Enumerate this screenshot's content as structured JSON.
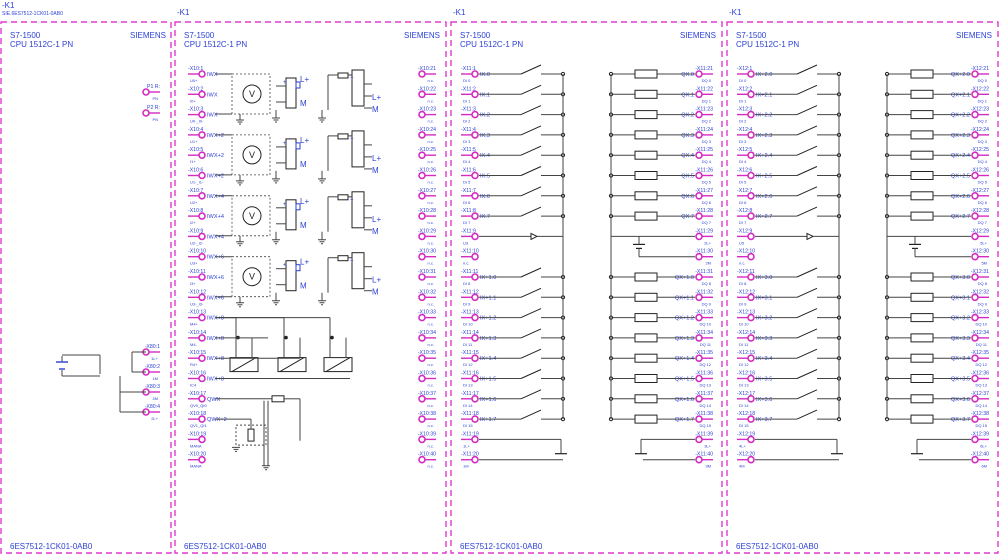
{
  "top": {
    "tag": "-K1",
    "article": "SIE.6ES7512-1CK01-0AB0"
  },
  "modules": [
    {
      "tag": "",
      "family": "S7-1500",
      "cpu": "CPU 1512C-1 PN",
      "brand": "SIEMENS",
      "order_no": "6ES7512-1CK01-0AB0",
      "terminals": [
        {
          "id": "P1 R:",
          "sig": "",
          "sub": "PN"
        },
        {
          "id": "P2 R:",
          "sig": "",
          "sub": "PN"
        },
        {
          "id": "-X80:1",
          "sig": "",
          "sub": "1L+"
        },
        {
          "id": "-X80:2",
          "sig": "",
          "sub": "1M"
        },
        {
          "id": "-X80:3",
          "sig": "",
          "sub": "2M"
        },
        {
          "id": "-X80:4",
          "sig": "",
          "sub": "2L+"
        }
      ]
    },
    {
      "tag": "-K1",
      "family": "S7-1500",
      "cpu": "CPU 1512C-1 PN",
      "brand": "SIEMENS",
      "order_no": "6ES7512-1CK01-0AB0",
      "left_terminals": [
        {
          "id": "-X10:1",
          "sig": "IWX",
          "sub": "U0+"
        },
        {
          "id": "-X10:2",
          "sig": "IWX",
          "sub": "I0+"
        },
        {
          "id": "-X10:3",
          "sig": "IWX",
          "sub": "U0-_I0-"
        },
        {
          "id": "-X10:4",
          "sig": "IWX+2",
          "sub": "U1+"
        },
        {
          "id": "-X10:5",
          "sig": "IWX+2",
          "sub": "I1+"
        },
        {
          "id": "-X10:6",
          "sig": "IWX+2",
          "sub": "U1-_I1-"
        },
        {
          "id": "-X10:7",
          "sig": "IWX+4",
          "sub": "U2+"
        },
        {
          "id": "-X10:8",
          "sig": "IWX+4",
          "sub": "I2+"
        },
        {
          "id": "-X10:9",
          "sig": "IWX+4",
          "sub": "U2-_I2-"
        },
        {
          "id": "-X10:10",
          "sig": "IWX+6",
          "sub": "U3+"
        },
        {
          "id": "-X10:11",
          "sig": "IWX+6",
          "sub": "I3+"
        },
        {
          "id": "-X10:12",
          "sig": "IWX+6",
          "sub": "U3-_I3-"
        },
        {
          "id": "-X10:13",
          "sig": "IWX+8",
          "sub": "M4+"
        },
        {
          "id": "-X10:14",
          "sig": "IWX+8",
          "sub": "M4-"
        },
        {
          "id": "-X10:15",
          "sig": "IWX+8",
          "sub": "R4+"
        },
        {
          "id": "-X10:16",
          "sig": "IWX+8",
          "sub": "IC4"
        },
        {
          "id": "-X10:17",
          "sig": "QWX",
          "sub": "QV0_QI0"
        },
        {
          "id": "-X10:18",
          "sig": "QWX+2",
          "sub": "QV1_QI1"
        },
        {
          "id": "-X10:19",
          "sig": "",
          "sub": "MANA"
        },
        {
          "id": "-X10:20",
          "sig": "",
          "sub": "MANA"
        }
      ],
      "right_terminals": [
        {
          "id": "-X10:21",
          "sub": "n.c."
        },
        {
          "id": "-X10:22",
          "sub": "n.c."
        },
        {
          "id": "-X10:23",
          "sub": "n.c."
        },
        {
          "id": "-X10:24",
          "sub": "n.c."
        },
        {
          "id": "-X10:25",
          "sub": "n.c."
        },
        {
          "id": "-X10:26",
          "sub": "n.c."
        },
        {
          "id": "-X10:27",
          "sub": "n.c."
        },
        {
          "id": "-X10:28",
          "sub": "n.c."
        },
        {
          "id": "-X10:29",
          "sub": "n.c."
        },
        {
          "id": "-X10:30",
          "sub": "n.c."
        },
        {
          "id": "-X10:31",
          "sub": "n.c."
        },
        {
          "id": "-X10:32",
          "sub": "n.c."
        },
        {
          "id": "-X10:33",
          "sub": "n.c."
        },
        {
          "id": "-X10:34",
          "sub": "n.c."
        },
        {
          "id": "-X10:35",
          "sub": "n.c."
        },
        {
          "id": "-X10:36",
          "sub": "n.c."
        },
        {
          "id": "-X10:37",
          "sub": "n.c."
        },
        {
          "id": "-X10:38",
          "sub": "n.c."
        },
        {
          "id": "-X10:39",
          "sub": "n.c."
        },
        {
          "id": "-X10:40",
          "sub": "n.c."
        }
      ],
      "supply_labels": [
        "L+",
        "M"
      ]
    },
    {
      "tag": "-K1",
      "family": "S7-1500",
      "cpu": "CPU 1512C-1 PN",
      "brand": "SIEMENS",
      "order_no": "6ES7512-1CK01-0AB0",
      "left_terminals": [
        {
          "id": "-X11:1",
          "sig": "IX.0",
          "sub": "DI 0"
        },
        {
          "id": "-X11:2",
          "sig": "IX.1",
          "sub": "DI 1"
        },
        {
          "id": "-X11:3",
          "sig": "IX.2",
          "sub": "DI 2"
        },
        {
          "id": "-X11:4",
          "sig": "IX.3",
          "sub": "DI 3"
        },
        {
          "id": "-X11:5",
          "sig": "IX.4",
          "sub": "DI 4"
        },
        {
          "id": "-X11:6",
          "sig": "IX.5",
          "sub": "DI 5"
        },
        {
          "id": "-X11:7",
          "sig": "IX.6",
          "sub": "DI 6"
        },
        {
          "id": "-X11:8",
          "sig": "IX.7",
          "sub": "DI 7"
        },
        {
          "id": "-X11:9",
          "sig": "",
          "sub": "U3"
        },
        {
          "id": "-X11:10",
          "sig": "",
          "sub": "n.c."
        },
        {
          "id": "-X11:11",
          "sig": "IX+1.0",
          "sub": "DI 8"
        },
        {
          "id": "-X11:12",
          "sig": "IX+1.1",
          "sub": "DI 9"
        },
        {
          "id": "-X11:13",
          "sig": "IX+1.2",
          "sub": "DI 10"
        },
        {
          "id": "-X11:14",
          "sig": "IX+1.3",
          "sub": "DI 11"
        },
        {
          "id": "-X11:15",
          "sig": "IX+1.4",
          "sub": "DI 12"
        },
        {
          "id": "-X11:16",
          "sig": "IX+1.5",
          "sub": "DI 13"
        },
        {
          "id": "-X11:17",
          "sig": "IX+1.6",
          "sub": "DI 14"
        },
        {
          "id": "-X11:18",
          "sig": "IX+1.7",
          "sub": "DI 15"
        },
        {
          "id": "-X11:19",
          "sig": "",
          "sub": "1L+"
        },
        {
          "id": "-X11:20",
          "sig": "",
          "sub": "1M"
        }
      ],
      "right_terminals": [
        {
          "id": "-X11:21",
          "sig": "QX.0",
          "sub": "DQ 0"
        },
        {
          "id": "-X11:22",
          "sig": "QX.1",
          "sub": "DQ 1"
        },
        {
          "id": "-X11:23",
          "sig": "QX.2",
          "sub": "DQ 2"
        },
        {
          "id": "-X11:24",
          "sig": "QX.3",
          "sub": "DQ 3"
        },
        {
          "id": "-X11:25",
          "sig": "QX.4",
          "sub": "DQ 4"
        },
        {
          "id": "-X11:26",
          "sig": "QX.5",
          "sub": "DQ 5"
        },
        {
          "id": "-X11:27",
          "sig": "QX.6",
          "sub": "DQ 6"
        },
        {
          "id": "-X11:28",
          "sig": "QX.7",
          "sub": "DQ 7"
        },
        {
          "id": "-X11:29",
          "sig": "",
          "sub": "2L+"
        },
        {
          "id": "-X11:30",
          "sig": "",
          "sub": "2M"
        },
        {
          "id": "-X11:31",
          "sig": "QX+1.0",
          "sub": "DQ 8"
        },
        {
          "id": "-X11:32",
          "sig": "QX+1.1",
          "sub": "DQ 9"
        },
        {
          "id": "-X11:33",
          "sig": "QX+1.2",
          "sub": "DQ 10"
        },
        {
          "id": "-X11:34",
          "sig": "QX+1.3",
          "sub": "DQ 11"
        },
        {
          "id": "-X11:35",
          "sig": "QX+1.4",
          "sub": "DQ 12"
        },
        {
          "id": "-X11:36",
          "sig": "QX+1.5",
          "sub": "DQ 13"
        },
        {
          "id": "-X11:37",
          "sig": "QX+1.6",
          "sub": "DQ 14"
        },
        {
          "id": "-X11:38",
          "sig": "QX+1.7",
          "sub": "DQ 15"
        },
        {
          "id": "-X11:39",
          "sig": "",
          "sub": "3L+"
        },
        {
          "id": "-X11:40",
          "sig": "",
          "sub": "3M"
        }
      ]
    },
    {
      "tag": "-K1",
      "family": "S7-1500",
      "cpu": "CPU 1512C-1 PN",
      "brand": "SIEMENS",
      "order_no": "6ES7512-1CK01-0AB0",
      "left_terminals": [
        {
          "id": "-X12:1",
          "sig": "IX+2.0",
          "sub": "DI 0"
        },
        {
          "id": "-X12:2",
          "sig": "IX+2.1",
          "sub": "DI 1"
        },
        {
          "id": "-X12:3",
          "sig": "IX+2.2",
          "sub": "DI 2"
        },
        {
          "id": "-X12:4",
          "sig": "IX+2.3",
          "sub": "DI 3"
        },
        {
          "id": "-X12:5",
          "sig": "IX+2.4",
          "sub": "DI 4"
        },
        {
          "id": "-X12:6",
          "sig": "IX+2.5",
          "sub": "DI 5"
        },
        {
          "id": "-X12:7",
          "sig": "IX+2.6",
          "sub": "DI 6"
        },
        {
          "id": "-X12:8",
          "sig": "IX+2.7",
          "sub": "DI 7"
        },
        {
          "id": "-X12:9",
          "sig": "",
          "sub": "U5"
        },
        {
          "id": "-X12:10",
          "sig": "",
          "sub": "n.c."
        },
        {
          "id": "-X12:11",
          "sig": "IX+3.0",
          "sub": "DI 8"
        },
        {
          "id": "-X12:12",
          "sig": "IX+3.1",
          "sub": "DI 9"
        },
        {
          "id": "-X12:13",
          "sig": "IX+3.2",
          "sub": "DI 10"
        },
        {
          "id": "-X12:14",
          "sig": "IX+3.3",
          "sub": "DI 11"
        },
        {
          "id": "-X12:15",
          "sig": "IX+3.4",
          "sub": "DI 12"
        },
        {
          "id": "-X12:16",
          "sig": "IX+3.5",
          "sub": "DI 13"
        },
        {
          "id": "-X12:17",
          "sig": "IX+3.6",
          "sub": "DI 14"
        },
        {
          "id": "-X12:18",
          "sig": "IX+3.7",
          "sub": "DI 15"
        },
        {
          "id": "-X12:19",
          "sig": "",
          "sub": "4L+"
        },
        {
          "id": "-X12:20",
          "sig": "",
          "sub": "4M"
        }
      ],
      "right_terminals": [
        {
          "id": "-X12:21",
          "sig": "QX+2.0",
          "sub": "DQ 0"
        },
        {
          "id": "-X12:22",
          "sig": "QX+2.1",
          "sub": "DQ 1"
        },
        {
          "id": "-X12:23",
          "sig": "QX+2.2",
          "sub": "DQ 2"
        },
        {
          "id": "-X12:24",
          "sig": "QX+2.3",
          "sub": "DQ 3"
        },
        {
          "id": "-X12:25",
          "sig": "QX+2.4",
          "sub": "DQ 4"
        },
        {
          "id": "-X12:26",
          "sig": "QX+2.5",
          "sub": "DQ 5"
        },
        {
          "id": "-X12:27",
          "sig": "QX+2.6",
          "sub": "DQ 6"
        },
        {
          "id": "-X12:28",
          "sig": "QX+2.7",
          "sub": "DQ 7"
        },
        {
          "id": "-X12:29",
          "sig": "",
          "sub": "5L+"
        },
        {
          "id": "-X12:30",
          "sig": "",
          "sub": "5M"
        },
        {
          "id": "-X12:31",
          "sig": "QX+3.0",
          "sub": "DQ 8"
        },
        {
          "id": "-X12:32",
          "sig": "QX+3.1",
          "sub": "DQ 9"
        },
        {
          "id": "-X12:33",
          "sig": "QX+3.2",
          "sub": "DQ 10"
        },
        {
          "id": "-X12:34",
          "sig": "QX+3.3",
          "sub": "DQ 11"
        },
        {
          "id": "-X12:35",
          "sig": "QX+3.4",
          "sub": "DQ 12"
        },
        {
          "id": "-X12:36",
          "sig": "QX+3.5",
          "sub": "DQ 13"
        },
        {
          "id": "-X12:37",
          "sig": "QX+3.6",
          "sub": "DQ 14"
        },
        {
          "id": "-X12:38",
          "sig": "QX+3.7",
          "sub": "DQ 15"
        },
        {
          "id": "-X12:39",
          "sig": "",
          "sub": "6L+"
        },
        {
          "id": "-X12:40",
          "sig": "",
          "sub": "6M"
        }
      ]
    }
  ],
  "colors": {
    "frame": "#e03ad0",
    "pin": "#d62bc0",
    "text": "#2b3fd6",
    "wire": "#444444"
  }
}
